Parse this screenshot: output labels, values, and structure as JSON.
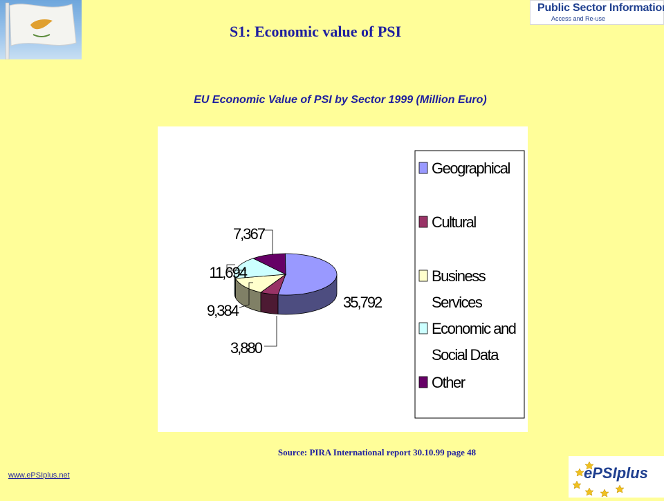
{
  "slide": {
    "title": "S1: Economic value of PSI",
    "source": "Source: PIRA International report 30.10.99 page 48",
    "url": "www.ePSIplus.net"
  },
  "logos": {
    "psi_line1": "Public Sector Information",
    "psi_line2": "Access and Re-use",
    "epsi_text": "ePSIplus"
  },
  "colors": {
    "background": "#fffe99",
    "title": "#1f1f9f"
  },
  "chart_data": {
    "type": "pie",
    "title": "EU Economic Value of PSI by Sector 1999 (Million Euro)",
    "categories": [
      "Geographical",
      "Cultural",
      "Business Services",
      "Economic and Social Data",
      "Other"
    ],
    "values": [
      35792,
      3880,
      9384,
      11694,
      7367
    ],
    "data_labels": [
      "35,792",
      "3,880",
      "9,384",
      "11,694",
      "7,367"
    ],
    "colors": [
      "#9999ff",
      "#993366",
      "#ffffcc",
      "#ccffff",
      "#660066"
    ],
    "legend_position": "right"
  }
}
